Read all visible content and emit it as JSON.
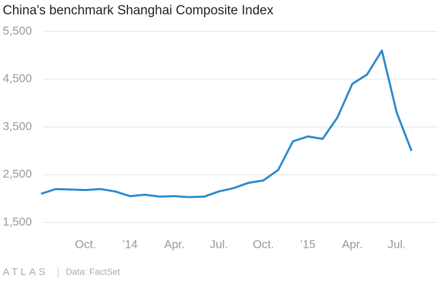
{
  "chart_data": {
    "type": "line",
    "title": "China's benchmark Shanghai Composite Index",
    "source": "Data: FactSet",
    "brand": "ATLAS",
    "x": [
      "2013-07",
      "2013-08",
      "2013-09",
      "2013-10",
      "2013-11",
      "2013-12",
      "2014-01",
      "2014-02",
      "2014-03",
      "2014-04",
      "2014-05",
      "2014-06",
      "2014-07",
      "2014-08",
      "2014-09",
      "2014-10",
      "2014-11",
      "2014-12",
      "2015-01",
      "2015-02",
      "2015-03",
      "2015-04",
      "2015-05",
      "2015-06",
      "2015-07",
      "2015-08"
    ],
    "series": [
      {
        "name": "Shanghai Composite Index",
        "color": "#2a8ad0",
        "values": [
          2100,
          2200,
          2190,
          2180,
          2200,
          2150,
          2050,
          2080,
          2040,
          2050,
          2030,
          2040,
          2150,
          2220,
          2330,
          2380,
          2600,
          3200,
          3300,
          3250,
          3700,
          4400,
          4600,
          5100,
          3800,
          3000
        ]
      }
    ],
    "xlim": [
      "2013-07",
      "2015-09"
    ],
    "xticks": [
      {
        "value": "2013-10",
        "label": "Oct."
      },
      {
        "value": "2014-01",
        "label": "’14"
      },
      {
        "value": "2014-04",
        "label": "Apr."
      },
      {
        "value": "2014-07",
        "label": "Jul."
      },
      {
        "value": "2014-10",
        "label": "Oct."
      },
      {
        "value": "2015-01",
        "label": "’15"
      },
      {
        "value": "2015-04",
        "label": "Apr."
      },
      {
        "value": "2015-07",
        "label": "Jul."
      }
    ],
    "ylim": [
      1500,
      5500
    ],
    "yticks": [
      {
        "value": 1500,
        "label": "1,500"
      },
      {
        "value": 2500,
        "label": "2,500"
      },
      {
        "value": 3500,
        "label": "3,500"
      },
      {
        "value": 4500,
        "label": "4,500"
      },
      {
        "value": 5500,
        "label": "5,500"
      }
    ],
    "grid": true
  }
}
